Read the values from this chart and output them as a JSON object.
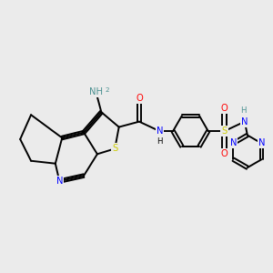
{
  "background_color": "#ebebeb",
  "colors": {
    "C": "#000000",
    "N": "#0000ff",
    "O": "#ff0000",
    "S": "#cccc00",
    "NH_teal": "#4a9090",
    "bond": "#000000"
  },
  "lw": 1.4,
  "fs": 7.2
}
